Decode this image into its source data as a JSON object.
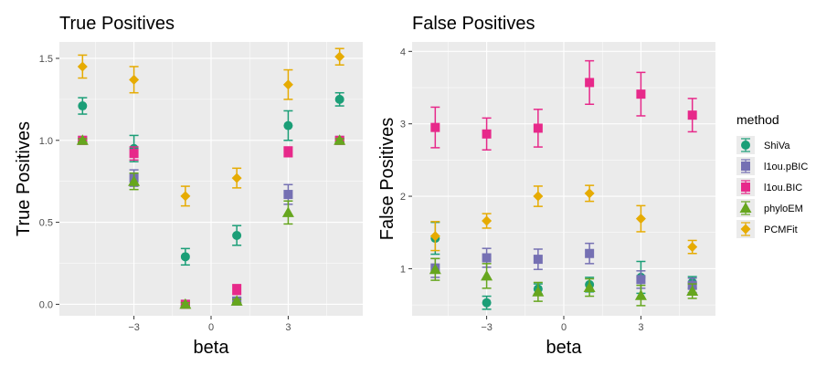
{
  "legend": {
    "title": "method",
    "items": [
      {
        "name": "ShiVa",
        "color": "#1b9e77",
        "shape": "circle"
      },
      {
        "name": "l1ou.pBIC",
        "color": "#7570b3",
        "shape": "square"
      },
      {
        "name": "l1ou.BIC",
        "color": "#e7298a",
        "shape": "square"
      },
      {
        "name": "phyloEM",
        "color": "#66a61e",
        "shape": "triangle"
      },
      {
        "name": "PCMFit",
        "color": "#e6ab02",
        "shape": "diamond"
      }
    ]
  },
  "chart_data": [
    {
      "type": "scatter",
      "title": "True Positives",
      "xlabel": "beta",
      "ylabel": "True Positives",
      "xlim": [
        -5.9,
        5.9
      ],
      "ylim": [
        -0.07,
        1.6
      ],
      "x_ticks": [
        -3,
        0,
        3
      ],
      "x_tick_labels": [
        "−3",
        "0",
        "3"
      ],
      "y_ticks": [
        0.0,
        0.5,
        1.0,
        1.5
      ],
      "y_tick_labels": [
        "0.0",
        "0.5",
        "1.0",
        "1.5"
      ],
      "x": [
        -5,
        -3,
        -1,
        1,
        3,
        5
      ],
      "series": [
        {
          "name": "ShiVa",
          "values": [
            1.21,
            0.95,
            0.29,
            0.42,
            1.09,
            1.25
          ],
          "err": [
            0.05,
            0.08,
            0.05,
            0.06,
            0.09,
            0.04
          ]
        },
        {
          "name": "l1ou.pBIC",
          "values": [
            1.0,
            0.77,
            0.0,
            0.02,
            0.67,
            1.0
          ],
          "err": [
            0.01,
            0.05,
            0.01,
            0.02,
            0.06,
            0.01
          ]
        },
        {
          "name": "l1ou.BIC",
          "values": [
            1.0,
            0.92,
            0.0,
            0.09,
            0.93,
            1.0
          ],
          "err": [
            0.01,
            0.04,
            0.01,
            0.03,
            0.03,
            0.01
          ]
        },
        {
          "name": "phyloEM",
          "values": [
            1.0,
            0.75,
            0.0,
            0.02,
            0.56,
            1.0
          ],
          "err": [
            0.01,
            0.05,
            0.01,
            0.01,
            0.07,
            0.01
          ]
        },
        {
          "name": "PCMFit",
          "values": [
            1.45,
            1.37,
            0.66,
            0.77,
            1.34,
            1.51
          ],
          "err": [
            0.07,
            0.08,
            0.06,
            0.06,
            0.09,
            0.05
          ]
        }
      ]
    },
    {
      "type": "scatter",
      "title": "False Positives",
      "xlabel": "beta",
      "ylabel": "False Positives",
      "xlim": [
        -5.9,
        5.9
      ],
      "ylim": [
        0.35,
        4.13
      ],
      "x_ticks": [
        -3,
        0,
        3
      ],
      "x_tick_labels": [
        "−3",
        "0",
        "3"
      ],
      "y_ticks": [
        1,
        2,
        3,
        4
      ],
      "y_tick_labels": [
        "1",
        "2",
        "3",
        "4"
      ],
      "x": [
        -5,
        -3,
        -1,
        1,
        3,
        5
      ],
      "series": [
        {
          "name": "ShiVa",
          "values": [
            1.42,
            0.53,
            0.72,
            0.78,
            0.88,
            0.81
          ],
          "err": [
            0.22,
            0.09,
            0.07,
            0.1,
            0.22,
            0.08
          ]
        },
        {
          "name": "l1ou.pBIC",
          "values": [
            1.01,
            1.15,
            1.13,
            1.21,
            0.85,
            0.77
          ],
          "err": [
            0.13,
            0.13,
            0.14,
            0.14,
            0.12,
            0.1
          ]
        },
        {
          "name": "l1ou.BIC",
          "values": [
            2.95,
            2.86,
            2.94,
            3.57,
            3.41,
            3.12
          ],
          "err": [
            0.28,
            0.22,
            0.26,
            0.3,
            0.3,
            0.23
          ]
        },
        {
          "name": "phyloEM",
          "values": [
            0.99,
            0.9,
            0.68,
            0.74,
            0.63,
            0.69
          ],
          "err": [
            0.15,
            0.17,
            0.13,
            0.12,
            0.14,
            0.1
          ]
        },
        {
          "name": "PCMFit",
          "values": [
            1.45,
            1.66,
            2.0,
            2.04,
            1.69,
            1.3
          ],
          "err": [
            0.2,
            0.1,
            0.14,
            0.11,
            0.18,
            0.09
          ]
        }
      ]
    }
  ]
}
